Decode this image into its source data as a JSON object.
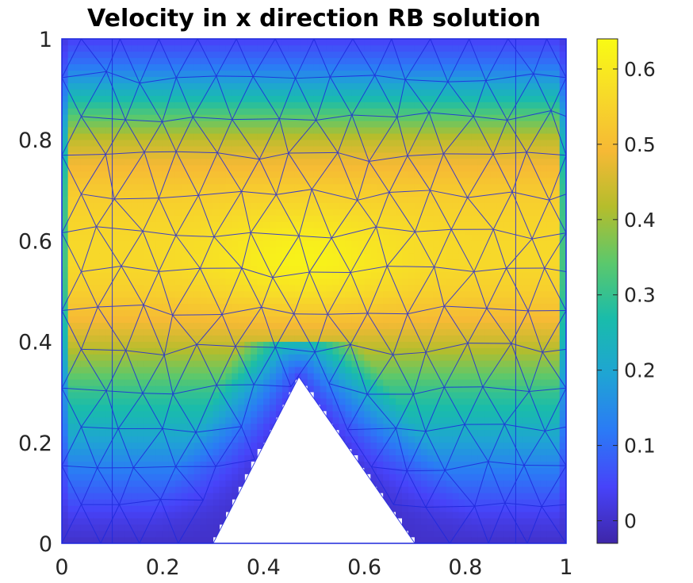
{
  "chart_data": {
    "type": "heatmap",
    "title": "Velocity in x direction RB solution",
    "xlabel": "",
    "ylabel": "",
    "xlim": [
      0,
      1
    ],
    "ylim": [
      0,
      1
    ],
    "x_ticks": [
      "0",
      "0.2",
      "0.4",
      "0.6",
      "0.8",
      "1"
    ],
    "y_ticks": [
      "0",
      "0.2",
      "0.4",
      "0.6",
      "0.8",
      "1"
    ],
    "colorbar": {
      "range": [
        -0.03,
        0.64
      ],
      "ticks": [
        "0",
        "0.1",
        "0.2",
        "0.3",
        "0.4",
        "0.5",
        "0.6"
      ],
      "colormap": "parula",
      "colors": [
        "#3e26a8",
        "#4743f9",
        "#2b7af6",
        "#1fa4d4",
        "#19bcab",
        "#5bc86c",
        "#b5bd2c",
        "#f6b935",
        "#f7da29",
        "#f9fb14"
      ]
    },
    "domain_cutout": {
      "description_points": [
        [
          0.3,
          0.0
        ],
        [
          0.47,
          0.33
        ],
        [
          0.7,
          0.0
        ]
      ]
    },
    "mesh_color": "#1e28dc",
    "field_profile": {
      "y": [
        0.0,
        0.05,
        0.1,
        0.15,
        0.2,
        0.25,
        0.3,
        0.35,
        0.4,
        0.45,
        0.5,
        0.55,
        0.6,
        0.65,
        0.7,
        0.75,
        0.8,
        0.85,
        0.9,
        0.95,
        1.0
      ],
      "u": [
        0.0,
        0.03,
        0.08,
        0.13,
        0.19,
        0.25,
        0.3,
        0.37,
        0.44,
        0.5,
        0.54,
        0.56,
        0.56,
        0.55,
        0.53,
        0.49,
        0.43,
        0.33,
        0.22,
        0.11,
        0.04
      ]
    }
  }
}
